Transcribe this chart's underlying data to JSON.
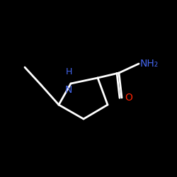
{
  "background_color": "#000000",
  "line_color": "#ffffff",
  "N_color": "#4466ee",
  "O_color": "#ff2200",
  "NH_label": "H\nN",
  "NH2_label": "NH₂",
  "O_label": "O",
  "figsize": [
    2.5,
    2.5
  ],
  "dpi": 100,
  "lw": 2.0
}
